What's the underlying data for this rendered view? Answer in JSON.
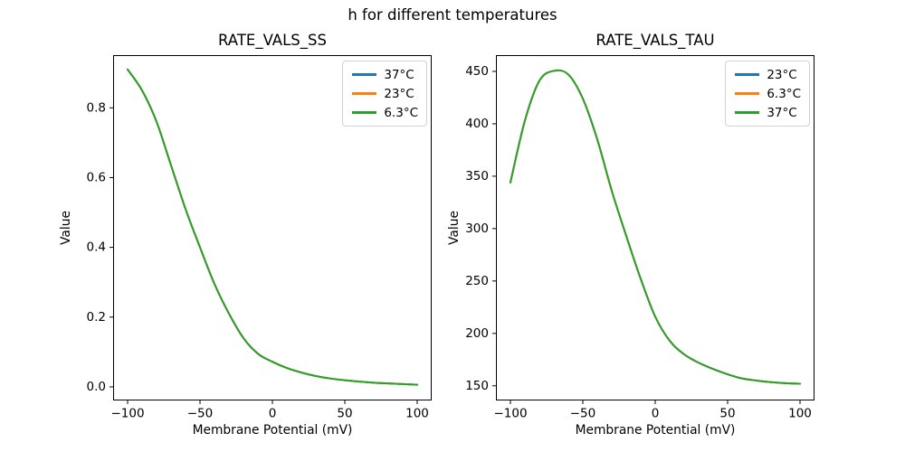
{
  "figure": {
    "title": "h for different temperatures",
    "background_color": "#ffffff",
    "text_color": "#000000",
    "axis_color": "#000000"
  },
  "chart_data": [
    {
      "id": "rate_vals_ss",
      "type": "line",
      "title": "RATE_VALS_SS",
      "xlabel": "Membrane Potential (mV)",
      "ylabel": "Value",
      "xlim": [
        -110,
        110
      ],
      "ylim": [
        -0.039,
        0.951
      ],
      "xticks": [
        -100,
        -50,
        0,
        50,
        100
      ],
      "xticklabels": [
        "−100",
        "−50",
        "0",
        "50",
        "100"
      ],
      "yticks": [
        0.0,
        0.2,
        0.4,
        0.6,
        0.8
      ],
      "yticklabels": [
        "0.0",
        "0.2",
        "0.4",
        "0.6",
        "0.8"
      ],
      "grid": false,
      "legend_position": "upper right",
      "x": [
        -100,
        -90,
        -80,
        -70,
        -60,
        -50,
        -40,
        -30,
        -20,
        -10,
        0,
        10,
        20,
        30,
        40,
        50,
        60,
        70,
        80,
        90,
        100
      ],
      "series": [
        {
          "name": "37°C",
          "color": "#1f77b4",
          "values": [
            0.91,
            0.85,
            0.76,
            0.635,
            0.51,
            0.4,
            0.295,
            0.21,
            0.14,
            0.095,
            0.072,
            0.054,
            0.041,
            0.031,
            0.024,
            0.019,
            0.015,
            0.012,
            0.01,
            0.008,
            0.006
          ]
        },
        {
          "name": "23°C",
          "color": "#ff7f0e",
          "values": [
            0.91,
            0.85,
            0.76,
            0.635,
            0.51,
            0.4,
            0.295,
            0.21,
            0.14,
            0.095,
            0.072,
            0.054,
            0.041,
            0.031,
            0.024,
            0.019,
            0.015,
            0.012,
            0.01,
            0.008,
            0.006
          ]
        },
        {
          "name": "6.3°C",
          "color": "#2ca02c",
          "values": [
            0.91,
            0.85,
            0.76,
            0.635,
            0.51,
            0.4,
            0.295,
            0.21,
            0.14,
            0.095,
            0.072,
            0.054,
            0.041,
            0.031,
            0.024,
            0.019,
            0.015,
            0.012,
            0.01,
            0.008,
            0.006
          ]
        }
      ],
      "note": "All three temperature curves overlap exactly; only the last-drawn green curve is visible."
    },
    {
      "id": "rate_vals_tau",
      "type": "line",
      "title": "RATE_VALS_TAU",
      "xlabel": "Membrane Potential (mV)",
      "ylabel": "Value",
      "xlim": [
        -110,
        110
      ],
      "ylim": [
        136,
        465.5
      ],
      "xticks": [
        -100,
        -50,
        0,
        50,
        100
      ],
      "xticklabels": [
        "−100",
        "−50",
        "0",
        "50",
        "100"
      ],
      "yticks": [
        150,
        200,
        250,
        300,
        350,
        400,
        450
      ],
      "yticklabels": [
        "150",
        "200",
        "250",
        "300",
        "350",
        "400",
        "450"
      ],
      "grid": false,
      "legend_position": "upper right",
      "x": [
        -100,
        -90,
        -80,
        -70,
        -60,
        -50,
        -40,
        -30,
        -20,
        -10,
        0,
        10,
        20,
        30,
        40,
        50,
        60,
        70,
        80,
        90,
        100
      ],
      "series": [
        {
          "name": "23°C",
          "color": "#1f77b4",
          "values": [
            344,
            403,
            441,
            450.5,
            447,
            424,
            385,
            336,
            293,
            252,
            216,
            193,
            180,
            172,
            166,
            161,
            157,
            155,
            153.5,
            152.5,
            152
          ]
        },
        {
          "name": "6.3°C",
          "color": "#ff7f0e",
          "values": [
            344,
            403,
            441,
            450.5,
            447,
            424,
            385,
            336,
            293,
            252,
            216,
            193,
            180,
            172,
            166,
            161,
            157,
            155,
            153.5,
            152.5,
            152
          ]
        },
        {
          "name": "37°C",
          "color": "#2ca02c",
          "values": [
            344,
            403,
            441,
            450.5,
            447,
            424,
            385,
            336,
            293,
            252,
            216,
            193,
            180,
            172,
            166,
            161,
            157,
            155,
            153.5,
            152.5,
            152
          ]
        }
      ],
      "note": "All three temperature curves overlap exactly; only the last-drawn green curve is visible."
    }
  ]
}
